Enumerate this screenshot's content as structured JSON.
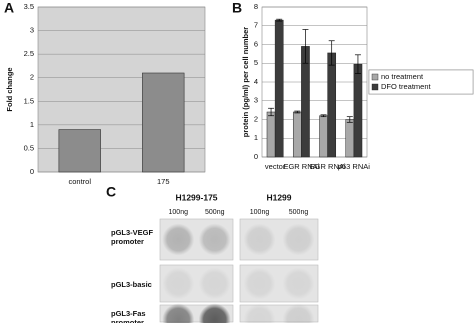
{
  "chart_data": [
    {
      "type": "bar",
      "label": "A",
      "ylabel": "Fold change",
      "categories": [
        "control",
        "175"
      ],
      "values": [
        0.9,
        2.1
      ],
      "color": "#8c8c8c",
      "background": "#d4d4d4",
      "ylim": [
        0,
        3.5
      ],
      "yticks": [
        0,
        0.5,
        1,
        1.5,
        2,
        2.5,
        3,
        3.5
      ],
      "grid": true
    },
    {
      "type": "bar",
      "label": "B",
      "ylabel": "protein (pg/ml) per cell number",
      "categories": [
        "vector",
        "EGR RNAi",
        "EGR RNAi",
        "p53 RNAi"
      ],
      "series": [
        {
          "name": "no treatment",
          "color": "#a8a8a8",
          "values": [
            2.4,
            2.4,
            2.2,
            2.0
          ],
          "errors": [
            0.2,
            0.05,
            0.05,
            0.15
          ]
        },
        {
          "name": "DFO treatment",
          "color": "#3c3c3c",
          "values": [
            7.3,
            5.9,
            5.55,
            4.95
          ],
          "errors": [
            0.05,
            0.9,
            0.65,
            0.5
          ]
        }
      ],
      "background": "#ffffff",
      "ylim": [
        0,
        8
      ],
      "yticks": [
        0,
        1,
        2,
        3,
        4,
        5,
        6,
        7,
        8
      ],
      "grid": true,
      "legend": "right"
    }
  ],
  "blot": {
    "label": "C",
    "columns": [
      {
        "name": "H1299-175",
        "doses": [
          "100ng",
          "500ng"
        ]
      },
      {
        "name": "H1299",
        "doses": [
          "100ng",
          "500ng"
        ]
      }
    ],
    "rows": [
      "pGL3-VEGF promoter",
      "pGL3-basic",
      "pGL3-Fas promoter"
    ]
  }
}
